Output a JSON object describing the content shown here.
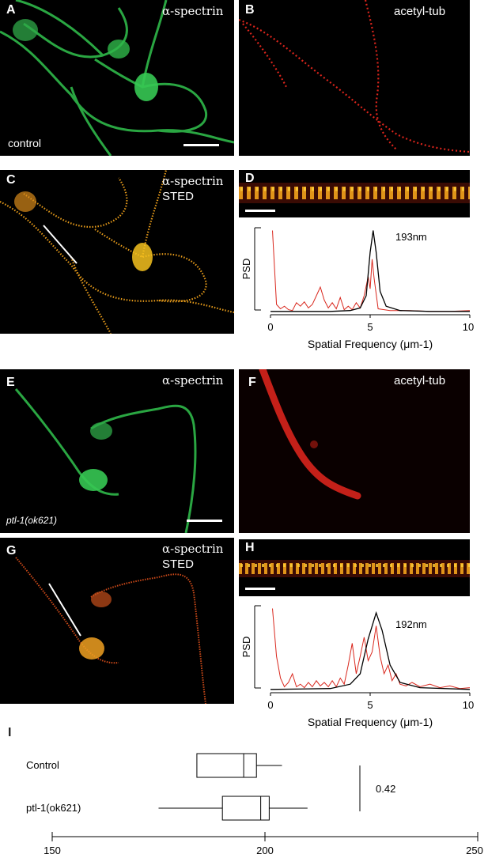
{
  "panels": {
    "A": {
      "label": "A",
      "title": "α-spectrin",
      "note": "control"
    },
    "B": {
      "label": "B",
      "title": "acetyl-tub"
    },
    "C": {
      "label": "C",
      "title_line1": "α-spectrin",
      "title_line2": "STED"
    },
    "D": {
      "label": "D",
      "peak_label": "193nm"
    },
    "E": {
      "label": "E",
      "title": "α-spectrin",
      "note": "ptl-1(ok621)"
    },
    "F": {
      "label": "F",
      "title": "acetyl-tub"
    },
    "G": {
      "label": "G",
      "title_line1": "α-spectrin",
      "title_line2": "STED"
    },
    "H": {
      "label": "H",
      "peak_label": "192nm"
    },
    "I": {
      "label": "I"
    }
  },
  "colors": {
    "green": "#2fb84a",
    "red": "#e8281e",
    "orange": "#f2a31c",
    "psd_red": "#d9281e",
    "fit_black": "#000000"
  },
  "chart_data": [
    {
      "type": "line",
      "ylabel": "PSD",
      "xlabel": "Spatial Frequency (μm-1)",
      "xticks": [
        "0",
        "5",
        "10"
      ],
      "xlim": [
        0,
        10
      ],
      "peak_label": "193nm",
      "series": [
        {
          "values": [
            [
              0.1,
              0.95
            ],
            [
              0.3,
              0.1
            ],
            [
              0.5,
              0.05
            ],
            [
              0.7,
              0.08
            ],
            [
              0.9,
              0.04
            ],
            [
              1.1,
              0.03
            ],
            [
              1.3,
              0.12
            ],
            [
              1.5,
              0.08
            ],
            [
              1.7,
              0.13
            ],
            [
              1.9,
              0.06
            ],
            [
              2.1,
              0.1
            ],
            [
              2.3,
              0.2
            ],
            [
              2.5,
              0.3
            ],
            [
              2.7,
              0.15
            ],
            [
              2.9,
              0.06
            ],
            [
              3.1,
              0.12
            ],
            [
              3.3,
              0.05
            ],
            [
              3.5,
              0.18
            ],
            [
              3.7,
              0.04
            ],
            [
              3.9,
              0.08
            ],
            [
              4.1,
              0.04
            ],
            [
              4.3,
              0.12
            ],
            [
              4.5,
              0.06
            ],
            [
              4.7,
              0.2
            ],
            [
              4.9,
              0.42
            ],
            [
              5.0,
              0.28
            ],
            [
              5.1,
              0.62
            ],
            [
              5.2,
              0.4
            ],
            [
              5.4,
              0.05
            ],
            [
              5.7,
              0.04
            ],
            [
              6,
              0.03
            ],
            [
              7,
              0.03
            ],
            [
              8,
              0.02
            ],
            [
              9,
              0.02
            ],
            [
              10,
              0.03
            ]
          ]
        },
        {
          "values": [
            [
              0,
              0.02
            ],
            [
              3,
              0.02
            ],
            [
              4,
              0.03
            ],
            [
              4.5,
              0.06
            ],
            [
              4.8,
              0.2
            ],
            [
              5.0,
              0.7
            ],
            [
              5.15,
              0.95
            ],
            [
              5.3,
              0.7
            ],
            [
              5.5,
              0.25
            ],
            [
              5.8,
              0.08
            ],
            [
              6.5,
              0.03
            ],
            [
              8,
              0.02
            ],
            [
              10,
              0.02
            ]
          ]
        }
      ]
    },
    {
      "type": "line",
      "ylabel": "PSD",
      "xlabel": "Spatial Frequency (μm-1)",
      "xticks": [
        "0",
        "5",
        "10"
      ],
      "xlim": [
        0,
        10
      ],
      "peak_label": "192nm",
      "series": [
        {
          "values": [
            [
              0.1,
              0.95
            ],
            [
              0.3,
              0.4
            ],
            [
              0.5,
              0.15
            ],
            [
              0.7,
              0.05
            ],
            [
              0.9,
              0.1
            ],
            [
              1.1,
              0.2
            ],
            [
              1.3,
              0.05
            ],
            [
              1.5,
              0.08
            ],
            [
              1.7,
              0.04
            ],
            [
              1.9,
              0.1
            ],
            [
              2.1,
              0.05
            ],
            [
              2.3,
              0.12
            ],
            [
              2.5,
              0.06
            ],
            [
              2.7,
              0.1
            ],
            [
              2.9,
              0.05
            ],
            [
              3.1,
              0.12
            ],
            [
              3.3,
              0.05
            ],
            [
              3.5,
              0.15
            ],
            [
              3.7,
              0.08
            ],
            [
              3.9,
              0.3
            ],
            [
              4.1,
              0.55
            ],
            [
              4.3,
              0.2
            ],
            [
              4.5,
              0.4
            ],
            [
              4.7,
              0.62
            ],
            [
              4.9,
              0.35
            ],
            [
              5.1,
              0.45
            ],
            [
              5.3,
              0.75
            ],
            [
              5.5,
              0.4
            ],
            [
              5.7,
              0.2
            ],
            [
              5.9,
              0.3
            ],
            [
              6.1,
              0.12
            ],
            [
              6.3,
              0.2
            ],
            [
              6.5,
              0.08
            ],
            [
              6.8,
              0.06
            ],
            [
              7.1,
              0.1
            ],
            [
              7.5,
              0.05
            ],
            [
              8,
              0.08
            ],
            [
              8.5,
              0.04
            ],
            [
              9,
              0.06
            ],
            [
              9.5,
              0.03
            ],
            [
              10,
              0.04
            ]
          ]
        },
        {
          "values": [
            [
              0,
              0.02
            ],
            [
              3,
              0.03
            ],
            [
              4,
              0.08
            ],
            [
              4.5,
              0.2
            ],
            [
              4.9,
              0.6
            ],
            [
              5.3,
              0.9
            ],
            [
              5.6,
              0.7
            ],
            [
              6,
              0.3
            ],
            [
              6.5,
              0.1
            ],
            [
              7.5,
              0.04
            ],
            [
              10,
              0.02
            ]
          ]
        }
      ]
    },
    {
      "type": "box",
      "categories": [
        "Control",
        "ptl-1(ok621)"
      ],
      "boxes": [
        {
          "min": 184,
          "q1": 184,
          "median": 195,
          "q3": 198,
          "max": 204
        },
        {
          "min": 175,
          "q1": 190,
          "median": 199,
          "q3": 201,
          "max": 210
        }
      ],
      "xticks": [
        "150",
        "200",
        "250"
      ],
      "xlim": [
        150,
        250
      ],
      "annotation": "0.42"
    }
  ]
}
